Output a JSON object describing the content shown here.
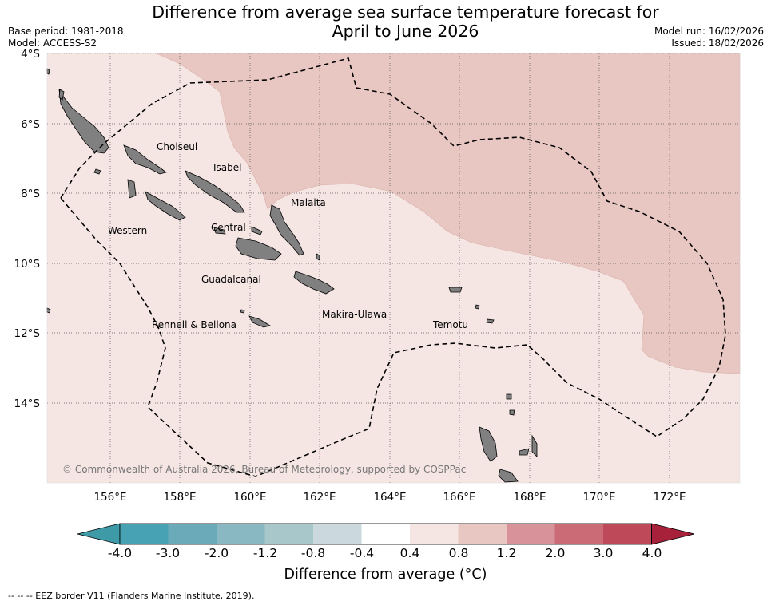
{
  "title_line1": "Difference from average sea surface temperature forecast for",
  "title_line2": "April to June 2026",
  "base_period": "Base period: 1981-2018",
  "model": "Model: ACCESS-S2",
  "model_run": "Model run: 16/02/2026",
  "issued": "Issued: 18/02/2026",
  "lat_labels": [
    "4°S",
    "6°S",
    "8°S",
    "10°S",
    "12°S",
    "14°S"
  ],
  "lon_labels": [
    "156°E",
    "158°E",
    "160°E",
    "162°E",
    "164°E",
    "166°E",
    "168°E",
    "170°E",
    "172°E"
  ],
  "places": {
    "choiseul": "Choiseul",
    "isabel": "Isabel",
    "malaita": "Malaita",
    "western": "Western",
    "central": "Central",
    "guadalcanal": "Guadalcanal",
    "makira_ulawa": "Makira-Ulawa",
    "temotu": "Temotu",
    "rennell_bellona": "Rennell & Bellona"
  },
  "copyright": "© Commonwealth of Australia 2026, Bureau of Meteorology, supported by COSPPac",
  "colorbar": {
    "ticks": [
      "-4.0",
      "-3.0",
      "-2.0",
      "-1.2",
      "-0.8",
      "-0.4",
      "0.4",
      "0.8",
      "1.2",
      "2.0",
      "3.0",
      "4.0"
    ],
    "colors": [
      "#3f9aa8",
      "#47a3b4",
      "#6aaab9",
      "#8ab8c2",
      "#a8c7cb",
      "#cbd9de",
      "#ffffff",
      "#f5e6e4",
      "#e8c6c1",
      "#d8929a",
      "#ca6b76",
      "#be4a59",
      "#a8213b"
    ],
    "label": "Difference from average (°C)"
  },
  "map_colors": {
    "ocean_0_4_to_0_8": "#f5e6e4",
    "ocean_0_8_to_1_2": "#e8c6c1",
    "land": "#808080"
  },
  "footnote": "--  --  -- EEZ border V11 (Flanders Marine Institute, 2019)."
}
